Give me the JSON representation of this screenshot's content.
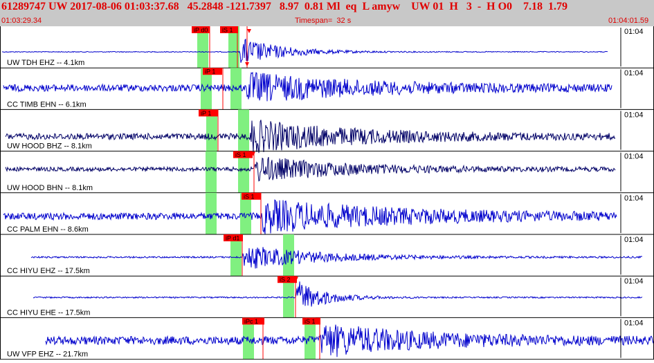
{
  "header": {
    "title": "61289747 UW 2017-08-06 01:03:37.68   45.2848 -121.7397   8.97  0.81 Ml  eq  L amyw    UW 01  H   3  -  H O0    7.18  1.79",
    "start_time": "01:03:29.34",
    "timespan": "Timespan=  32 s",
    "end_time": "01:04:01.59"
  },
  "colors": {
    "header_bg": "#c8c8c8",
    "header_text": "#e00000",
    "trace_blue": "#0000cc",
    "trace_dark": "#000066",
    "pick_red": "#ff0000",
    "window_green": "#80f080"
  },
  "traces": [
    {
      "label": "UW TDH EHZ -- 4.1km",
      "time_tick": "01:04",
      "color": "blue",
      "picks": [
        {
          "text": "iP d0"
        },
        {
          "text": "iS 1"
        }
      ]
    },
    {
      "label": "CC TIMB EHN -- 6.1km",
      "time_tick": "01:04",
      "color": "blue",
      "picks": [
        {
          "text": "iP 1"
        }
      ]
    },
    {
      "label": "UW HOOD BHZ -- 8.1km",
      "time_tick": "01:04",
      "color": "dark",
      "picks": [
        {
          "text": "iP 1"
        }
      ]
    },
    {
      "label": "UW HOOD BHN -- 8.1km",
      "time_tick": "01:04",
      "color": "dark",
      "picks": [
        {
          "text": "iS 1"
        }
      ]
    },
    {
      "label": "CC PALM EHN -- 8.6km",
      "time_tick": "01:04",
      "color": "blue",
      "picks": [
        {
          "text": "iS 1"
        }
      ]
    },
    {
      "label": "CC HIYU EHZ -- 17.5km",
      "time_tick": "01:04",
      "color": "blue",
      "picks": [
        {
          "text": "iP d1"
        }
      ]
    },
    {
      "label": "CC HIYU EHE -- 17.5km",
      "time_tick": "01:04",
      "color": "blue",
      "picks": [
        {
          "text": "iS 2"
        }
      ]
    },
    {
      "label": "UW VFP EHZ -- 21.7km",
      "time_tick": "01:04",
      "color": "blue",
      "picks": [
        {
          "text": "iPc 1"
        },
        {
          "text": "iS 1"
        }
      ]
    }
  ]
}
